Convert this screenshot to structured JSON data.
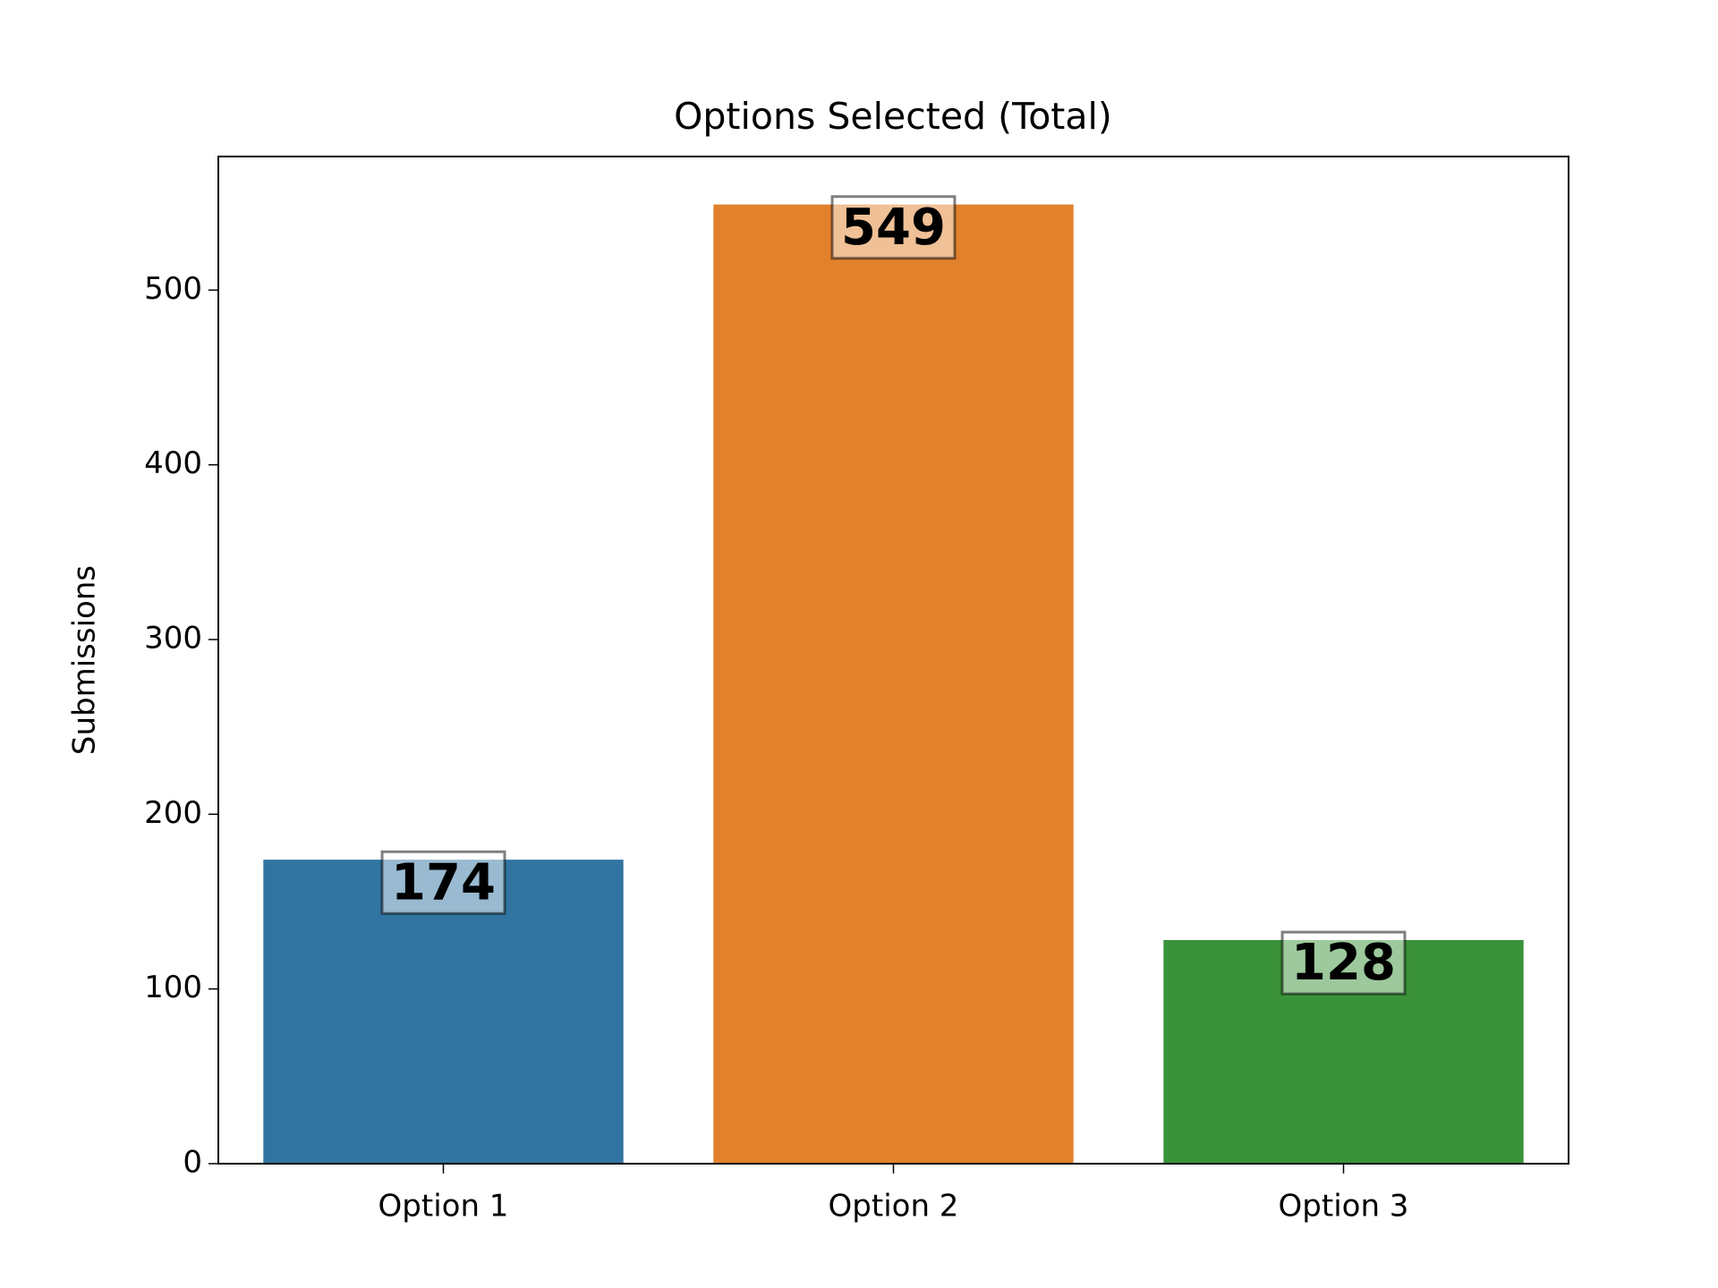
{
  "chart_data": {
    "type": "bar",
    "title": "Options Selected (Total)",
    "y_label": "Submissions",
    "categories": [
      "Option 1",
      "Option 2",
      "Option 3"
    ],
    "values": [
      174,
      549,
      128
    ],
    "colors": [
      "#3274a1",
      "#e1812c",
      "#3a923a"
    ],
    "ylim": [
      0,
      576.45
    ],
    "yticks": [
      0,
      100,
      200,
      300,
      400,
      500
    ],
    "grid": false
  }
}
